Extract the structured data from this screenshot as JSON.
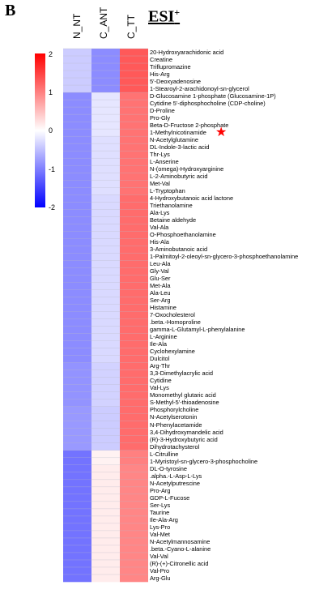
{
  "panel_label": "B",
  "column_labels": [
    "N_NT",
    "C_ANT",
    "C_TT"
  ],
  "esi_title": "ESI",
  "esi_superscript": "+",
  "colorbar": {
    "ticks": [
      "2",
      "1",
      "0",
      "-1",
      "-2"
    ],
    "colors": {
      "high": "#ff0000",
      "mid": "#ffffff",
      "low": "#0000ff"
    }
  },
  "marked_row_index": 11,
  "chart_data": {
    "type": "heatmap",
    "columns": [
      "N_NT",
      "C_ANT",
      "C_TT"
    ],
    "value_range": [
      -2,
      2
    ],
    "rows": [
      {
        "label": "20-Hydroxyarachidonic acid",
        "values": [
          -0.4,
          -0.9,
          1.3
        ]
      },
      {
        "label": "Creatine",
        "values": [
          -0.4,
          -0.9,
          1.3
        ]
      },
      {
        "label": "Triflupromazine",
        "values": [
          -0.4,
          -0.9,
          1.3
        ]
      },
      {
        "label": "His-Arg",
        "values": [
          -0.4,
          -0.9,
          1.3
        ]
      },
      {
        "label": "5'-Deoxyadenosine",
        "values": [
          -0.4,
          -0.9,
          1.3
        ]
      },
      {
        "label": "1-Stearoyl-2-arachidonoyl-sn-glycerol",
        "values": [
          -0.4,
          -0.9,
          1.3
        ]
      },
      {
        "label": "D-Glucosamine 1-phosphate (Glucosamine-1P)",
        "values": [
          -0.9,
          -0.2,
          1.1
        ]
      },
      {
        "label": "Cytidine 5'-diphosphocholine (CDP-choline)",
        "values": [
          -0.9,
          -0.2,
          1.1
        ]
      },
      {
        "label": "D-Proline",
        "values": [
          -0.9,
          -0.2,
          1.1
        ]
      },
      {
        "label": "Pro-Gly",
        "values": [
          -0.9,
          -0.2,
          1.1
        ]
      },
      {
        "label": "Beta-D-Fructose 2-phosphate",
        "values": [
          -0.9,
          -0.2,
          1.1
        ]
      },
      {
        "label": "1-Methylnicotinamide",
        "values": [
          -0.9,
          -0.2,
          1.1
        ]
      },
      {
        "label": "N-Acetylglutamine",
        "values": [
          -0.9,
          -0.25,
          1.1
        ]
      },
      {
        "label": "DL-Indole-3-lactic acid",
        "values": [
          -0.9,
          -0.25,
          1.1
        ]
      },
      {
        "label": "Thr-Lys",
        "values": [
          -0.9,
          -0.25,
          1.1
        ]
      },
      {
        "label": "L-Anserine",
        "values": [
          -0.9,
          -0.25,
          1.1
        ]
      },
      {
        "label": "N-(omega)-Hydroxyarginine",
        "values": [
          -0.9,
          -0.25,
          1.1
        ]
      },
      {
        "label": "L-2-Aminobutyric acid",
        "values": [
          -0.9,
          -0.25,
          1.1
        ]
      },
      {
        "label": "Met-Val",
        "values": [
          -0.9,
          -0.25,
          1.1
        ]
      },
      {
        "label": "L-Tryptophan",
        "values": [
          -0.9,
          -0.25,
          1.1
        ]
      },
      {
        "label": "4-Hydroxybutanoic acid lactone",
        "values": [
          -0.9,
          -0.3,
          1.15
        ]
      },
      {
        "label": "Triethanolamine",
        "values": [
          -0.9,
          -0.3,
          1.15
        ]
      },
      {
        "label": "Ala-Lys",
        "values": [
          -0.9,
          -0.3,
          1.15
        ]
      },
      {
        "label": "Betaine aldehyde",
        "values": [
          -0.9,
          -0.3,
          1.15
        ]
      },
      {
        "label": "Val-Ala",
        "values": [
          -0.9,
          -0.3,
          1.15
        ]
      },
      {
        "label": "O-Phosphoethanolamine",
        "values": [
          -0.9,
          -0.3,
          1.15
        ]
      },
      {
        "label": "His-Ala",
        "values": [
          -0.9,
          -0.3,
          1.15
        ]
      },
      {
        "label": "3-Aminobutanoic acid",
        "values": [
          -0.9,
          -0.3,
          1.15
        ]
      },
      {
        "label": "1-Palmitoyl-2-oleoyl-sn-glycero-3-phosphoethanolamine",
        "values": [
          -0.9,
          -0.3,
          1.15
        ]
      },
      {
        "label": "Leu-Ala",
        "values": [
          -0.9,
          -0.3,
          1.15
        ]
      },
      {
        "label": "Gly-Val",
        "values": [
          -0.9,
          -0.3,
          1.15
        ]
      },
      {
        "label": "Glu-Ser",
        "values": [
          -0.9,
          -0.3,
          1.15
        ]
      },
      {
        "label": "Met-Ala",
        "values": [
          -0.9,
          -0.3,
          1.15
        ]
      },
      {
        "label": "Ala-Leu",
        "values": [
          -0.9,
          -0.3,
          1.15
        ]
      },
      {
        "label": "Ser-Arg",
        "values": [
          -0.9,
          -0.3,
          1.15
        ]
      },
      {
        "label": "Histamine",
        "values": [
          -0.9,
          -0.3,
          1.15
        ]
      },
      {
        "label": "7-Oxocholesterol",
        "values": [
          -0.9,
          -0.3,
          1.15
        ]
      },
      {
        "label": ".beta.-Homoproline",
        "values": [
          -0.9,
          -0.3,
          1.15
        ]
      },
      {
        "label": "gamma-L-Glutamyl-L-phenylalanine",
        "values": [
          -0.9,
          -0.3,
          1.15
        ]
      },
      {
        "label": "L-Arginine",
        "values": [
          -0.9,
          -0.3,
          1.15
        ]
      },
      {
        "label": "Ile-Ala",
        "values": [
          -0.9,
          -0.3,
          1.15
        ]
      },
      {
        "label": "Cyclohexylamine",
        "values": [
          -0.9,
          -0.3,
          1.15
        ]
      },
      {
        "label": "Dulcitol",
        "values": [
          -0.9,
          -0.3,
          1.15
        ]
      },
      {
        "label": "Arg-Thr",
        "values": [
          -0.85,
          -0.35,
          1.15
        ]
      },
      {
        "label": "3,3-Dimethylacrylic acid",
        "values": [
          -0.85,
          -0.35,
          1.15
        ]
      },
      {
        "label": "Cytidine",
        "values": [
          -0.85,
          -0.35,
          1.15
        ]
      },
      {
        "label": "Val-Lys",
        "values": [
          -0.85,
          -0.35,
          1.15
        ]
      },
      {
        "label": "Monomethyl glutaric acid",
        "values": [
          -0.85,
          -0.35,
          1.15
        ]
      },
      {
        "label": "S-Methyl-5'-thioadenosine",
        "values": [
          -0.85,
          -0.35,
          1.15
        ]
      },
      {
        "label": "Phosphorylcholine",
        "values": [
          -0.8,
          -0.4,
          1.15
        ]
      },
      {
        "label": "N-Acetylserotonin",
        "values": [
          -0.8,
          -0.4,
          1.15
        ]
      },
      {
        "label": "N-Phenylacetamide",
        "values": [
          -0.8,
          -0.4,
          1.15
        ]
      },
      {
        "label": "3,4-Dihydroxymandelic acid",
        "values": [
          -0.8,
          -0.4,
          1.15
        ]
      },
      {
        "label": "(R)-3-Hydroxybutyric acid",
        "values": [
          -0.8,
          -0.4,
          1.15
        ]
      },
      {
        "label": "Dihydrotachysterol",
        "values": [
          -0.8,
          -0.4,
          1.15
        ]
      },
      {
        "label": "L-Citrulline",
        "values": [
          -1.1,
          0.1,
          1.0
        ]
      },
      {
        "label": "1-Myristoyl-sn-glycero-3-phosphocholine",
        "values": [
          -1.1,
          0.1,
          1.0
        ]
      },
      {
        "label": "DL-O-tyrosine",
        "values": [
          -1.1,
          0.15,
          0.95
        ]
      },
      {
        "label": ".alpha.-L-Asp-L-Lys",
        "values": [
          -1.1,
          0.15,
          0.95
        ]
      },
      {
        "label": "N-Acetylputrescine",
        "values": [
          -1.1,
          0.15,
          0.95
        ]
      },
      {
        "label": "Pro-Arg",
        "values": [
          -1.1,
          0.15,
          0.95
        ]
      },
      {
        "label": "GDP-L-Fucose",
        "values": [
          -1.1,
          0.15,
          0.95
        ]
      },
      {
        "label": "Ser-Lys",
        "values": [
          -1.1,
          0.15,
          0.95
        ]
      },
      {
        "label": "Taurine",
        "values": [
          -1.1,
          0.15,
          0.95
        ]
      },
      {
        "label": "Ile-Ala-Arg",
        "values": [
          -1.1,
          0.15,
          0.95
        ]
      },
      {
        "label": "Lys-Pro",
        "values": [
          -1.1,
          0.15,
          0.95
        ]
      },
      {
        "label": "Val-Met",
        "values": [
          -1.1,
          0.15,
          0.95
        ]
      },
      {
        "label": "N-Acetylmannosamine",
        "values": [
          -1.1,
          0.15,
          0.95
        ]
      },
      {
        "label": ".beta.-Cyano-L-alanine",
        "values": [
          -1.1,
          0.15,
          0.95
        ]
      },
      {
        "label": "Val-Val",
        "values": [
          -1.1,
          0.15,
          0.95
        ]
      },
      {
        "label": "(R)-(+)-Citronellic acid",
        "values": [
          -1.1,
          0.15,
          0.95
        ]
      },
      {
        "label": "Val-Pro",
        "values": [
          -1.1,
          0.15,
          0.95
        ]
      },
      {
        "label": "Arg-Glu",
        "values": [
          -1.1,
          0.15,
          0.95
        ]
      }
    ]
  }
}
